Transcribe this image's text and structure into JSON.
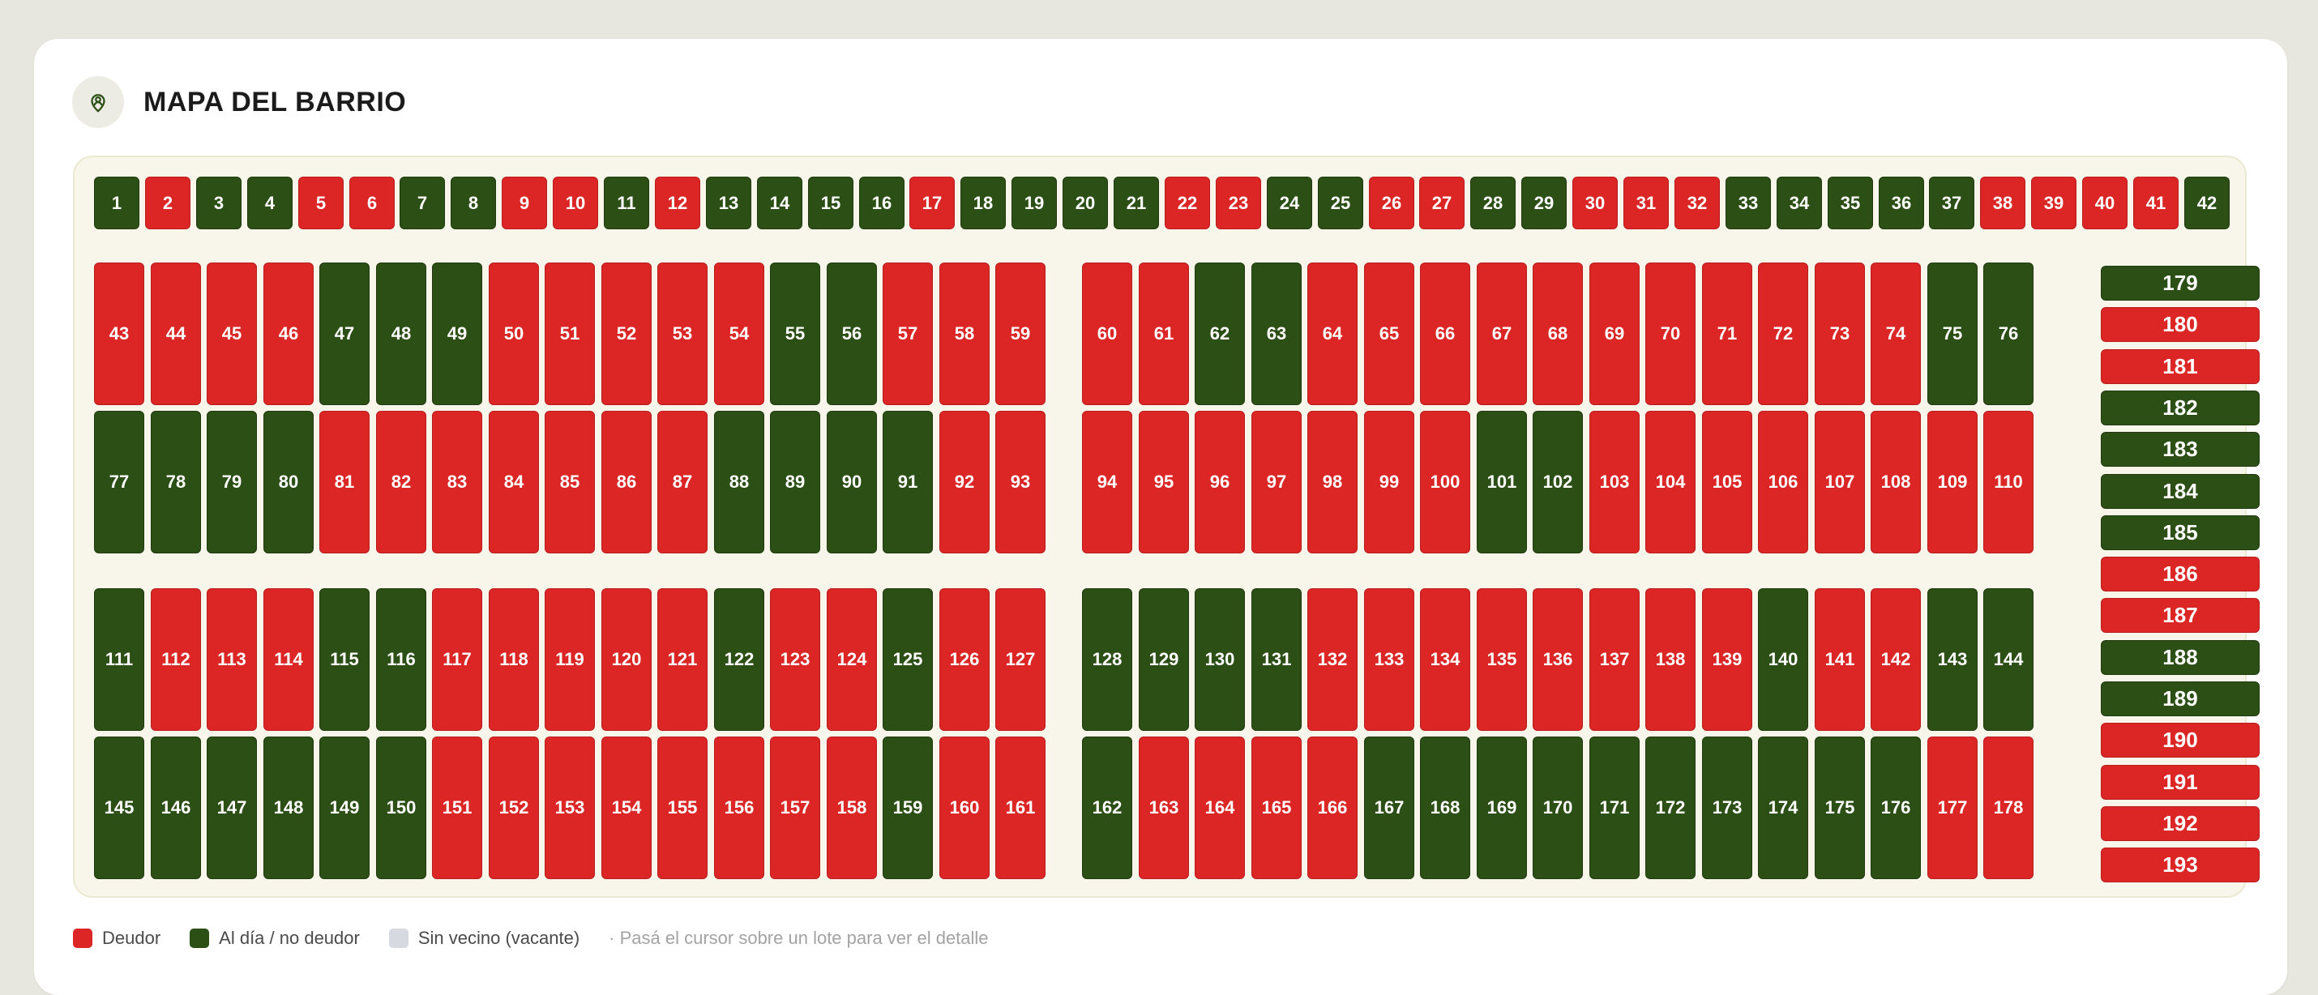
{
  "header": {
    "title": "MAPA DEL BARRIO",
    "icon": "map-pin-person-icon"
  },
  "colors": {
    "debtor": "#dc2626",
    "up_to_date": "#2c4f16",
    "vacant": "#d6dae0"
  },
  "lots": {
    "top_row": [
      {
        "n": "1",
        "s": "g"
      },
      {
        "n": "2",
        "s": "r"
      },
      {
        "n": "3",
        "s": "g"
      },
      {
        "n": "4",
        "s": "g"
      },
      {
        "n": "5",
        "s": "r"
      },
      {
        "n": "6",
        "s": "r"
      },
      {
        "n": "7",
        "s": "g"
      },
      {
        "n": "8",
        "s": "g"
      },
      {
        "n": "9",
        "s": "r"
      },
      {
        "n": "10",
        "s": "r"
      },
      {
        "n": "11",
        "s": "g"
      },
      {
        "n": "12",
        "s": "r"
      },
      {
        "n": "13",
        "s": "g"
      },
      {
        "n": "14",
        "s": "g"
      },
      {
        "n": "15",
        "s": "g"
      },
      {
        "n": "16",
        "s": "g"
      },
      {
        "n": "17",
        "s": "r"
      },
      {
        "n": "18",
        "s": "g"
      },
      {
        "n": "19",
        "s": "g"
      },
      {
        "n": "20",
        "s": "g"
      },
      {
        "n": "21",
        "s": "g"
      },
      {
        "n": "22",
        "s": "r"
      },
      {
        "n": "23",
        "s": "r"
      },
      {
        "n": "24",
        "s": "g"
      },
      {
        "n": "25",
        "s": "g"
      },
      {
        "n": "26",
        "s": "r"
      },
      {
        "n": "27",
        "s": "r"
      },
      {
        "n": "28",
        "s": "g"
      },
      {
        "n": "29",
        "s": "g"
      },
      {
        "n": "30",
        "s": "r"
      },
      {
        "n": "31",
        "s": "r"
      },
      {
        "n": "32",
        "s": "r"
      },
      {
        "n": "33",
        "s": "g"
      },
      {
        "n": "34",
        "s": "g"
      },
      {
        "n": "35",
        "s": "g"
      },
      {
        "n": "36",
        "s": "g"
      },
      {
        "n": "37",
        "s": "g"
      },
      {
        "n": "38",
        "s": "r"
      },
      {
        "n": "39",
        "s": "r"
      },
      {
        "n": "40",
        "s": "r"
      },
      {
        "n": "41",
        "s": "r"
      },
      {
        "n": "42",
        "s": "g"
      }
    ],
    "block_rows": [
      [
        {
          "n": "43",
          "s": "r"
        },
        {
          "n": "44",
          "s": "r"
        },
        {
          "n": "45",
          "s": "r"
        },
        {
          "n": "46",
          "s": "r"
        },
        {
          "n": "47",
          "s": "g"
        },
        {
          "n": "48",
          "s": "g"
        },
        {
          "n": "49",
          "s": "g"
        },
        {
          "n": "50",
          "s": "r"
        },
        {
          "n": "51",
          "s": "r"
        },
        {
          "n": "52",
          "s": "r"
        },
        {
          "n": "53",
          "s": "r"
        },
        {
          "n": "54",
          "s": "r"
        },
        {
          "n": "55",
          "s": "g"
        },
        {
          "n": "56",
          "s": "g"
        },
        {
          "n": "57",
          "s": "r"
        },
        {
          "n": "58",
          "s": "r"
        },
        {
          "n": "59",
          "s": "r"
        },
        {
          "n": "60",
          "s": "r"
        },
        {
          "n": "61",
          "s": "r"
        },
        {
          "n": "62",
          "s": "g"
        },
        {
          "n": "63",
          "s": "g"
        },
        {
          "n": "64",
          "s": "r"
        },
        {
          "n": "65",
          "s": "r"
        },
        {
          "n": "66",
          "s": "r"
        },
        {
          "n": "67",
          "s": "r"
        },
        {
          "n": "68",
          "s": "r"
        },
        {
          "n": "69",
          "s": "r"
        },
        {
          "n": "70",
          "s": "r"
        },
        {
          "n": "71",
          "s": "r"
        },
        {
          "n": "72",
          "s": "r"
        },
        {
          "n": "73",
          "s": "r"
        },
        {
          "n": "74",
          "s": "r"
        },
        {
          "n": "75",
          "s": "g"
        },
        {
          "n": "76",
          "s": "g"
        }
      ],
      [
        {
          "n": "77",
          "s": "g"
        },
        {
          "n": "78",
          "s": "g"
        },
        {
          "n": "79",
          "s": "g"
        },
        {
          "n": "80",
          "s": "g"
        },
        {
          "n": "81",
          "s": "r"
        },
        {
          "n": "82",
          "s": "r"
        },
        {
          "n": "83",
          "s": "r"
        },
        {
          "n": "84",
          "s": "r"
        },
        {
          "n": "85",
          "s": "r"
        },
        {
          "n": "86",
          "s": "r"
        },
        {
          "n": "87",
          "s": "r"
        },
        {
          "n": "88",
          "s": "g"
        },
        {
          "n": "89",
          "s": "g"
        },
        {
          "n": "90",
          "s": "g"
        },
        {
          "n": "91",
          "s": "g"
        },
        {
          "n": "92",
          "s": "r"
        },
        {
          "n": "93",
          "s": "r"
        },
        {
          "n": "94",
          "s": "r"
        },
        {
          "n": "95",
          "s": "r"
        },
        {
          "n": "96",
          "s": "r"
        },
        {
          "n": "97",
          "s": "r"
        },
        {
          "n": "98",
          "s": "r"
        },
        {
          "n": "99",
          "s": "r"
        },
        {
          "n": "100",
          "s": "r"
        },
        {
          "n": "101",
          "s": "g"
        },
        {
          "n": "102",
          "s": "g"
        },
        {
          "n": "103",
          "s": "r"
        },
        {
          "n": "104",
          "s": "r"
        },
        {
          "n": "105",
          "s": "r"
        },
        {
          "n": "106",
          "s": "r"
        },
        {
          "n": "107",
          "s": "r"
        },
        {
          "n": "108",
          "s": "r"
        },
        {
          "n": "109",
          "s": "r"
        },
        {
          "n": "110",
          "s": "r"
        }
      ],
      [
        {
          "n": "111",
          "s": "g"
        },
        {
          "n": "112",
          "s": "r"
        },
        {
          "n": "113",
          "s": "r"
        },
        {
          "n": "114",
          "s": "r"
        },
        {
          "n": "115",
          "s": "g"
        },
        {
          "n": "116",
          "s": "g"
        },
        {
          "n": "117",
          "s": "r"
        },
        {
          "n": "118",
          "s": "r"
        },
        {
          "n": "119",
          "s": "r"
        },
        {
          "n": "120",
          "s": "r"
        },
        {
          "n": "121",
          "s": "r"
        },
        {
          "n": "122",
          "s": "g"
        },
        {
          "n": "123",
          "s": "r"
        },
        {
          "n": "124",
          "s": "r"
        },
        {
          "n": "125",
          "s": "g"
        },
        {
          "n": "126",
          "s": "r"
        },
        {
          "n": "127",
          "s": "r"
        },
        {
          "n": "128",
          "s": "g"
        },
        {
          "n": "129",
          "s": "g"
        },
        {
          "n": "130",
          "s": "g"
        },
        {
          "n": "131",
          "s": "g"
        },
        {
          "n": "132",
          "s": "r"
        },
        {
          "n": "133",
          "s": "r"
        },
        {
          "n": "134",
          "s": "r"
        },
        {
          "n": "135",
          "s": "r"
        },
        {
          "n": "136",
          "s": "r"
        },
        {
          "n": "137",
          "s": "r"
        },
        {
          "n": "138",
          "s": "r"
        },
        {
          "n": "139",
          "s": "r"
        },
        {
          "n": "140",
          "s": "g"
        },
        {
          "n": "141",
          "s": "r"
        },
        {
          "n": "142",
          "s": "r"
        },
        {
          "n": "143",
          "s": "g"
        },
        {
          "n": "144",
          "s": "g"
        }
      ],
      [
        {
          "n": "145",
          "s": "g"
        },
        {
          "n": "146",
          "s": "g"
        },
        {
          "n": "147",
          "s": "g"
        },
        {
          "n": "148",
          "s": "g"
        },
        {
          "n": "149",
          "s": "g"
        },
        {
          "n": "150",
          "s": "g"
        },
        {
          "n": "151",
          "s": "r"
        },
        {
          "n": "152",
          "s": "r"
        },
        {
          "n": "153",
          "s": "r"
        },
        {
          "n": "154",
          "s": "r"
        },
        {
          "n": "155",
          "s": "r"
        },
        {
          "n": "156",
          "s": "r"
        },
        {
          "n": "157",
          "s": "r"
        },
        {
          "n": "158",
          "s": "r"
        },
        {
          "n": "159",
          "s": "g"
        },
        {
          "n": "160",
          "s": "r"
        },
        {
          "n": "161",
          "s": "r"
        },
        {
          "n": "162",
          "s": "g"
        },
        {
          "n": "163",
          "s": "r"
        },
        {
          "n": "164",
          "s": "r"
        },
        {
          "n": "165",
          "s": "r"
        },
        {
          "n": "166",
          "s": "r"
        },
        {
          "n": "167",
          "s": "g"
        },
        {
          "n": "168",
          "s": "g"
        },
        {
          "n": "169",
          "s": "g"
        },
        {
          "n": "170",
          "s": "g"
        },
        {
          "n": "171",
          "s": "g"
        },
        {
          "n": "172",
          "s": "g"
        },
        {
          "n": "173",
          "s": "g"
        },
        {
          "n": "174",
          "s": "g"
        },
        {
          "n": "175",
          "s": "g"
        },
        {
          "n": "176",
          "s": "g"
        },
        {
          "n": "177",
          "s": "r"
        },
        {
          "n": "178",
          "s": "r"
        }
      ]
    ],
    "side_column": [
      {
        "n": "179",
        "s": "g"
      },
      {
        "n": "180",
        "s": "r"
      },
      {
        "n": "181",
        "s": "r"
      },
      {
        "n": "182",
        "s": "g"
      },
      {
        "n": "183",
        "s": "g"
      },
      {
        "n": "184",
        "s": "g"
      },
      {
        "n": "185",
        "s": "g"
      },
      {
        "n": "186",
        "s": "r"
      },
      {
        "n": "187",
        "s": "r"
      },
      {
        "n": "188",
        "s": "g"
      },
      {
        "n": "189",
        "s": "g"
      },
      {
        "n": "190",
        "s": "r"
      },
      {
        "n": "191",
        "s": "r"
      },
      {
        "n": "192",
        "s": "r"
      },
      {
        "n": "193",
        "s": "r"
      }
    ]
  },
  "legend": {
    "debtor": "Deudor",
    "up_to_date": "Al día / no deudor",
    "vacant": "Sin vecino (vacante)",
    "hint": "· Pasá el cursor sobre un lote para ver el detalle"
  }
}
